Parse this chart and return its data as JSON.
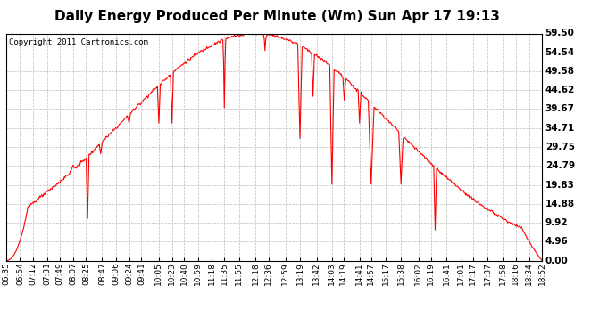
{
  "title": "Daily Energy Produced Per Minute (Wm) Sun Apr 17 19:13",
  "copyright": "Copyright 2011 Cartronics.com",
  "line_color": "#ff0000",
  "background_color": "#ffffff",
  "plot_bg_color": "#ffffff",
  "grid_color": "#aaaaaa",
  "yticks": [
    0.0,
    4.96,
    9.92,
    14.88,
    19.83,
    24.79,
    29.75,
    34.71,
    39.67,
    44.62,
    49.58,
    54.54,
    59.5
  ],
  "ylim": [
    0.0,
    59.5
  ],
  "xtick_labels": [
    "06:35",
    "06:54",
    "07:12",
    "07:31",
    "07:49",
    "08:07",
    "08:25",
    "08:47",
    "09:06",
    "09:24",
    "09:41",
    "10:05",
    "10:23",
    "10:40",
    "10:59",
    "11:18",
    "11:35",
    "11:55",
    "12:18",
    "12:36",
    "12:59",
    "13:19",
    "13:42",
    "14:03",
    "14:19",
    "14:41",
    "14:57",
    "15:17",
    "15:38",
    "16:02",
    "16:19",
    "16:41",
    "17:01",
    "17:17",
    "17:37",
    "17:58",
    "18:16",
    "18:34",
    "18:52"
  ],
  "title_fontsize": 11,
  "copyright_fontsize": 6.5,
  "tick_fontsize": 6.5,
  "ytick_fontsize": 7.5,
  "line_width": 0.8
}
